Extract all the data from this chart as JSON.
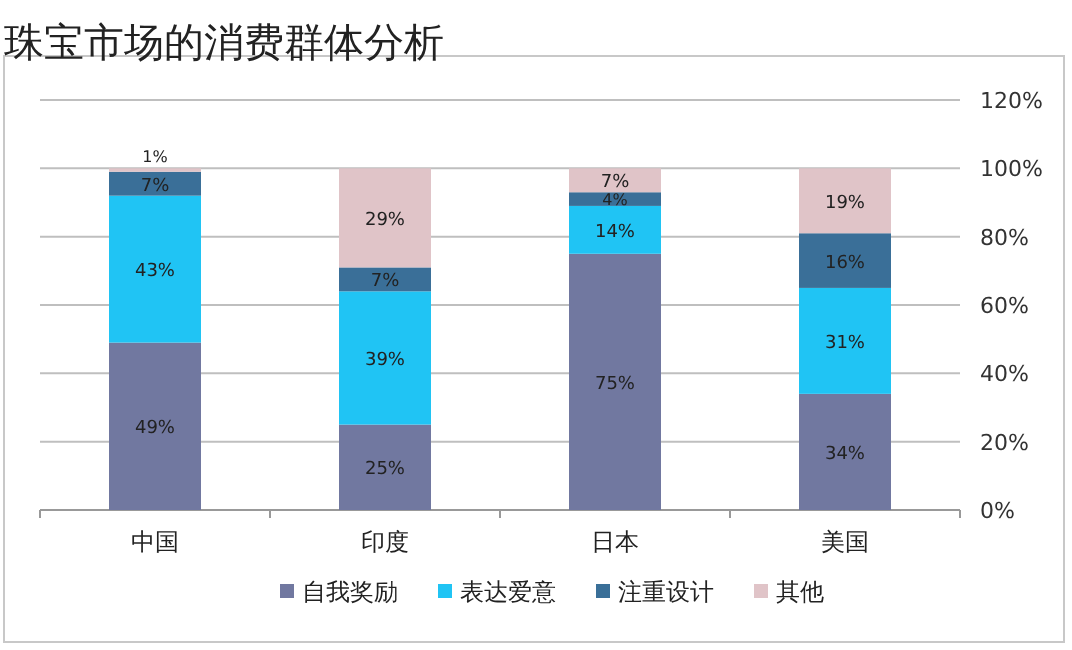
{
  "chart_data": {
    "type": "bar",
    "title": "珠宝市场的消费群体分析",
    "stacked": true,
    "categories": [
      "中国",
      "印度",
      "日本",
      "美国"
    ],
    "series": [
      {
        "name": "自我奖励",
        "color": "#7178a0",
        "values": [
          49,
          25,
          75,
          34
        ],
        "value_labels": [
          "49%",
          "25%",
          "75%",
          "34%"
        ]
      },
      {
        "name": "表达爱意",
        "color": "#20c4f4",
        "values": [
          43,
          39,
          14,
          31
        ],
        "value_labels": [
          "43%",
          "39%",
          "14%",
          "31%"
        ]
      },
      {
        "name": "注重设计",
        "color": "#3a6f98",
        "values": [
          7,
          7,
          4,
          16
        ],
        "value_labels": [
          "7%",
          "7%",
          "4%",
          "16%"
        ]
      },
      {
        "name": "其他",
        "color": "#e0c4c8",
        "values": [
          1,
          29,
          7,
          19
        ],
        "value_labels": [
          "1%",
          "29%",
          "7%",
          "19%"
        ]
      }
    ],
    "ylim": [
      0,
      120
    ],
    "yticks": [
      {
        "value": 0,
        "label": "0%"
      },
      {
        "value": 20,
        "label": "20%"
      },
      {
        "value": 40,
        "label": "40%"
      },
      {
        "value": 60,
        "label": "60%"
      },
      {
        "value": 80,
        "label": "80%"
      },
      {
        "value": 100,
        "label": "100%"
      },
      {
        "value": 120,
        "label": "120%"
      }
    ],
    "grid": "y",
    "legend": "bottom"
  }
}
